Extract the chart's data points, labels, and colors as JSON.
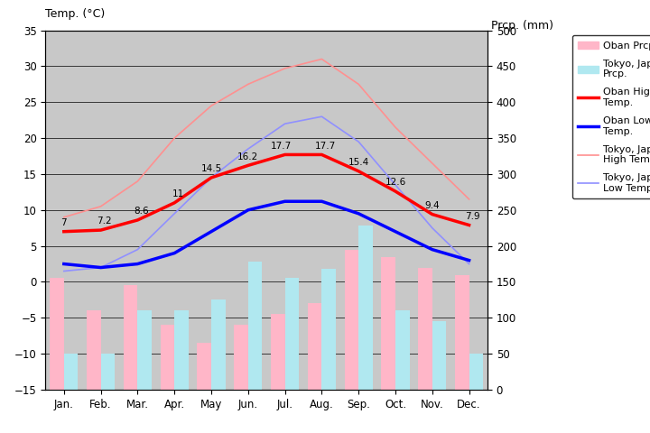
{
  "months": [
    "Jan.",
    "Feb.",
    "Mar.",
    "Apr.",
    "May",
    "Jun.",
    "Jul.",
    "Aug.",
    "Sep.",
    "Oct.",
    "Nov.",
    "Dec."
  ],
  "oban_high": [
    7.0,
    7.2,
    8.6,
    11.0,
    14.5,
    16.2,
    17.7,
    17.7,
    15.4,
    12.6,
    9.4,
    7.9
  ],
  "oban_low": [
    2.5,
    2.0,
    2.5,
    4.0,
    7.0,
    10.0,
    11.2,
    11.2,
    9.5,
    7.0,
    4.5,
    3.0
  ],
  "tokyo_high": [
    9.0,
    10.5,
    14.0,
    20.0,
    24.5,
    27.5,
    29.7,
    31.0,
    27.5,
    21.5,
    16.5,
    11.5
  ],
  "tokyo_low": [
    1.5,
    2.0,
    4.5,
    9.5,
    14.5,
    18.5,
    22.0,
    23.0,
    19.5,
    13.5,
    7.5,
    2.5
  ],
  "oban_prcp_mm": [
    155,
    110,
    145,
    90,
    65,
    90,
    105,
    120,
    195,
    185,
    170,
    160
  ],
  "tokyo_prcp_mm": [
    50,
    50,
    110,
    110,
    125,
    178,
    155,
    168,
    229,
    110,
    95,
    50
  ],
  "oban_high_labels": [
    "7",
    "7.2",
    "8.6",
    "11",
    "14.5",
    "16.2",
    "17.7",
    "17.7",
    "15.4",
    "12.6",
    "9.4",
    "7.9"
  ],
  "temp_ylim": [
    -15,
    35
  ],
  "prcp_ylim": [
    0,
    500
  ],
  "temp_yticks": [
    -15,
    -10,
    -5,
    0,
    5,
    10,
    15,
    20,
    25,
    30,
    35
  ],
  "prcp_yticks": [
    0,
    50,
    100,
    150,
    200,
    250,
    300,
    350,
    400,
    450,
    500
  ],
  "title_left": "Temp. (°C)",
  "title_right": "Prcp. (mm)",
  "bg_color": "#c8c8c8",
  "oban_prcp_color": "#ffb6c8",
  "tokyo_prcp_color": "#b0e8f0",
  "oban_high_color": "#ff0000",
  "oban_low_color": "#0000ff",
  "tokyo_high_color": "#ff9090",
  "tokyo_low_color": "#9090ff",
  "bar_width": 0.38
}
